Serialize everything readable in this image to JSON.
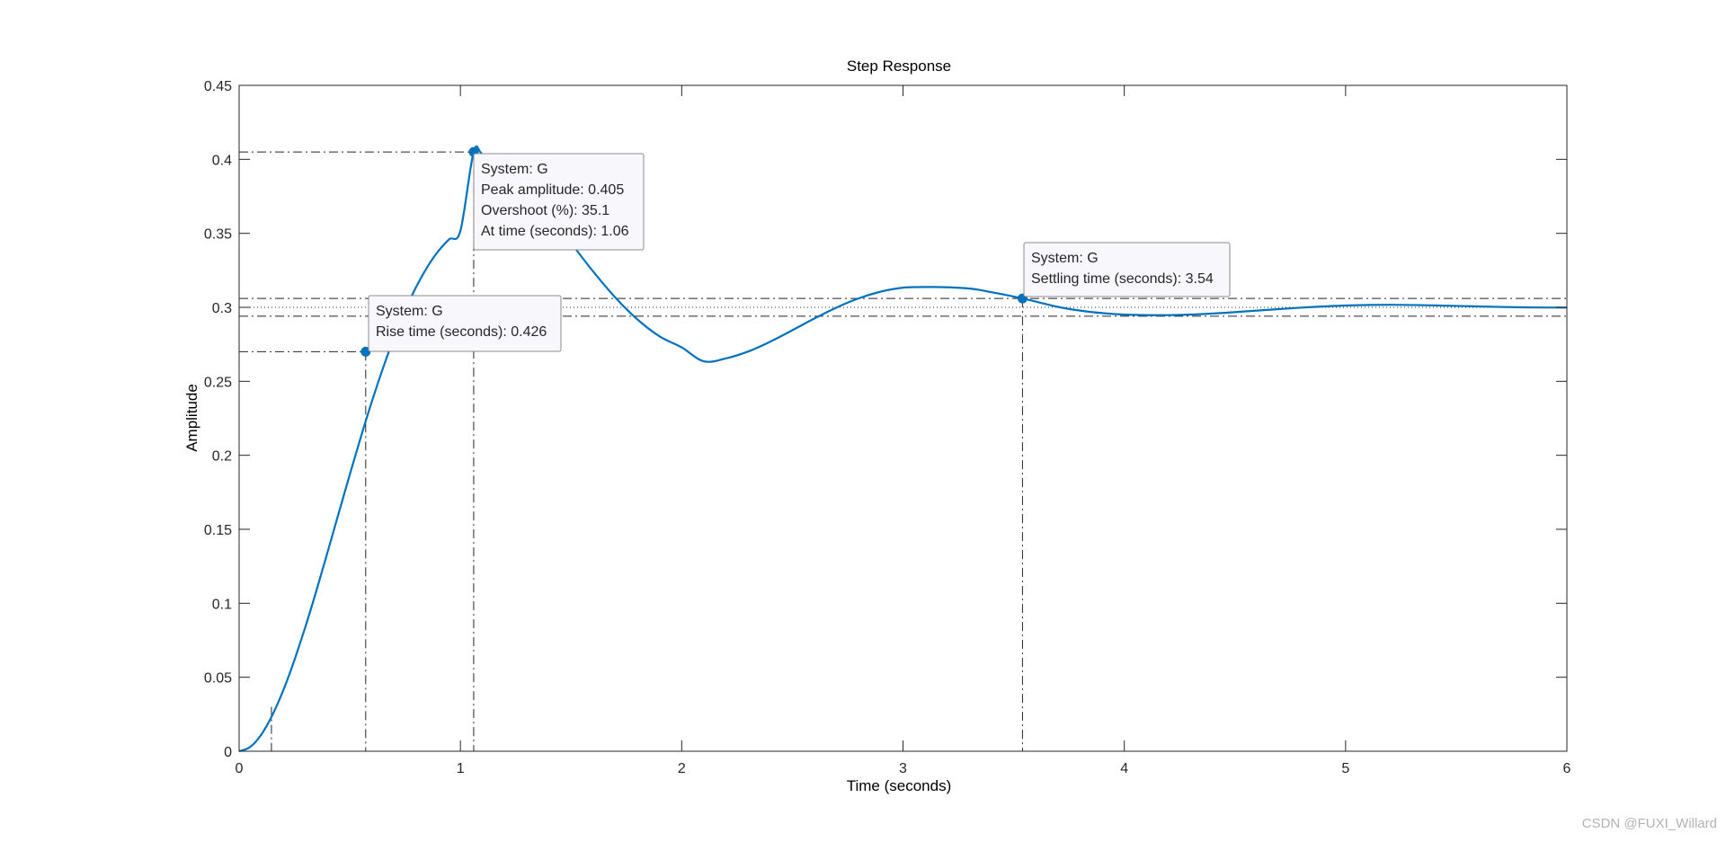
{
  "watermark": "CSDN @FUXI_Willard",
  "chart_data": {
    "type": "line",
    "title": "Step Response",
    "xlabel": "Time (seconds)",
    "ylabel": "Amplitude",
    "xlim": [
      0,
      6
    ],
    "ylim": [
      0,
      0.45
    ],
    "xticks": [
      0,
      1,
      2,
      3,
      4,
      5,
      6
    ],
    "xtick_labels": [
      "0",
      "1",
      "2",
      "3",
      "4",
      "5",
      "6"
    ],
    "yticks": [
      0,
      0.05,
      0.1,
      0.15,
      0.2,
      0.25,
      0.3,
      0.35,
      0.4,
      0.45
    ],
    "ytick_labels": [
      "0",
      "0.05",
      "0.1",
      "0.15",
      "0.2",
      "0.25",
      "0.3",
      "0.35",
      "0.4",
      "0.45"
    ],
    "grid": false,
    "box": true,
    "line_color": "#0072BD",
    "system": {
      "final_value": 0.3,
      "peak_time": 1.06,
      "peak_amplitude": 0.405,
      "settling_band": [
        0.294,
        0.306
      ],
      "rise_level_low": 0.03,
      "rise_level_high": 0.27,
      "rise_start_time": 0.146,
      "rise_end_time": 0.572
    },
    "series": [
      {
        "values": [
          [
            0.0,
            0.0
          ],
          [
            0.05,
            0.0029
          ],
          [
            0.1,
            0.0112
          ],
          [
            0.15,
            0.0243
          ],
          [
            0.2,
            0.0413
          ],
          [
            0.25,
            0.0616
          ],
          [
            0.3,
            0.0844
          ],
          [
            0.35,
            0.109
          ],
          [
            0.4,
            0.1348
          ],
          [
            0.45,
            0.161
          ],
          [
            0.5,
            0.187
          ],
          [
            0.55,
            0.2123
          ],
          [
            0.6,
            0.2364
          ],
          [
            0.65,
            0.2588
          ],
          [
            0.7,
            0.2794
          ],
          [
            0.75,
            0.2977
          ],
          [
            0.8,
            0.3137
          ],
          [
            0.85,
            0.3271
          ],
          [
            0.9,
            0.3379
          ],
          [
            0.95,
            0.3461
          ],
          [
            1.0,
            0.3518
          ],
          [
            1.06,
            0.405
          ],
          [
            1.1,
            0.4035
          ],
          [
            1.2,
            0.3945
          ],
          [
            1.3,
            0.3805
          ],
          [
            1.4,
            0.3626
          ],
          [
            1.5,
            0.3434
          ],
          [
            1.6,
            0.3242
          ],
          [
            1.7,
            0.3066
          ],
          [
            1.8,
            0.2918
          ],
          [
            1.9,
            0.2804
          ],
          [
            2.0,
            0.2729
          ],
          [
            2.1,
            0.2635
          ],
          [
            2.2,
            0.2655
          ],
          [
            2.3,
            0.2701
          ],
          [
            2.4,
            0.2768
          ],
          [
            2.5,
            0.2845
          ],
          [
            2.6,
            0.2925
          ],
          [
            2.7,
            0.2999
          ],
          [
            2.8,
            0.3061
          ],
          [
            2.9,
            0.3106
          ],
          [
            3.0,
            0.3133
          ],
          [
            3.14,
            0.3137
          ],
          [
            3.3,
            0.3127
          ],
          [
            3.4,
            0.3102
          ],
          [
            3.54,
            0.306
          ],
          [
            3.7,
            0.3003
          ],
          [
            3.8,
            0.2978
          ],
          [
            3.9,
            0.2961
          ],
          [
            4.0,
            0.2951
          ],
          [
            4.2,
            0.2947
          ],
          [
            4.4,
            0.2958
          ],
          [
            4.6,
            0.2978
          ],
          [
            4.8,
            0.2998
          ],
          [
            5.0,
            0.3012
          ],
          [
            5.2,
            0.3017
          ],
          [
            5.4,
            0.3013
          ],
          [
            5.6,
            0.3006
          ],
          [
            5.8,
            0.3
          ],
          [
            6.0,
            0.2998
          ]
        ]
      }
    ],
    "markers": [
      {
        "name": "rise",
        "x": 0.572,
        "y": 0.27
      },
      {
        "name": "peak",
        "x": 1.06,
        "y": 0.405
      },
      {
        "name": "settling",
        "x": 3.54,
        "y": 0.306
      }
    ],
    "datatips": [
      {
        "name": "rise",
        "lines": [
          "System: G",
          "Rise time (seconds): 0.426"
        ]
      },
      {
        "name": "peak",
        "lines": [
          "System: G",
          "Peak amplitude: 0.405",
          "Overshoot (%): 35.1",
          "At time (seconds): 1.06"
        ]
      },
      {
        "name": "settling",
        "lines": [
          "System: G",
          "Settling time (seconds): 3.54"
        ]
      }
    ]
  }
}
